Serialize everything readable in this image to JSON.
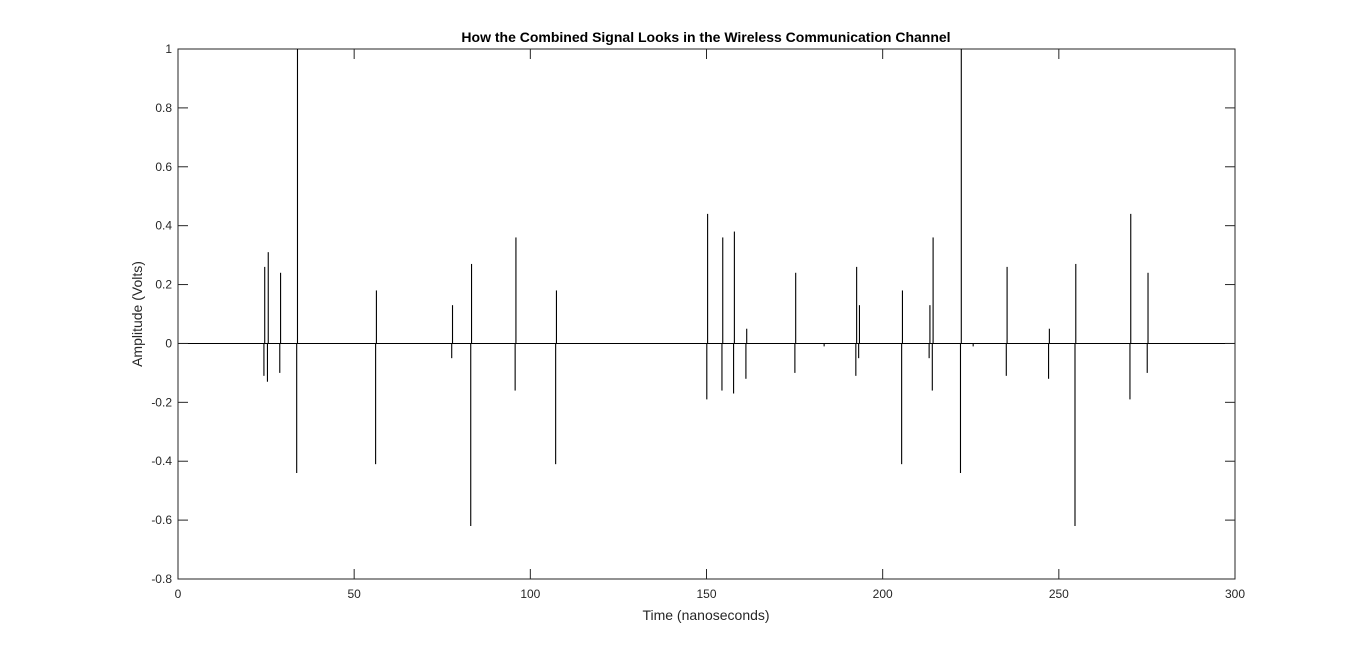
{
  "chart_data": {
    "type": "line",
    "title": "How the Combined Signal Looks in the Wireless Communication Channel",
    "xlabel": "Time (nanoseconds)",
    "ylabel": "Amplitude (Volts)",
    "xlim": [
      0,
      300
    ],
    "ylim": [
      -0.8,
      1
    ],
    "xticks": [
      0,
      50,
      100,
      150,
      200,
      250,
      300
    ],
    "yticks": [
      -0.8,
      -0.6,
      -0.4,
      -0.2,
      0,
      0.2,
      0.4,
      0.6,
      0.8,
      1
    ],
    "xtick_labels": [
      "0",
      "50",
      "100",
      "150",
      "200",
      "250",
      "300"
    ],
    "ytick_labels": [
      "-0.8",
      "-0.6",
      "-0.4",
      "-0.2",
      "0",
      "0.2",
      "0.4",
      "0.6",
      "0.8",
      "1"
    ],
    "grid": false,
    "line_color": "#000000",
    "baseline": 0,
    "pulses": [
      {
        "t": 24.5,
        "peak": 0.26,
        "trough": -0.11
      },
      {
        "t": 25.5,
        "peak": 0.31,
        "trough": -0.13
      },
      {
        "t": 29,
        "peak": 0.24,
        "trough": -0.1
      },
      {
        "t": 33.8,
        "peak": 1.0,
        "trough": -0.44
      },
      {
        "t": 56.2,
        "peak": 0.18,
        "trough": -0.41
      },
      {
        "t": 77.8,
        "peak": 0.13,
        "trough": -0.05
      },
      {
        "t": 83.2,
        "peak": 0.27,
        "trough": -0.62
      },
      {
        "t": 95.8,
        "peak": 0.36,
        "trough": -0.16
      },
      {
        "t": 107.3,
        "peak": 0.18,
        "trough": -0.41
      },
      {
        "t": 150.2,
        "peak": 0.44,
        "trough": -0.19
      },
      {
        "t": 154.5,
        "peak": 0.36,
        "trough": -0.16
      },
      {
        "t": 157.8,
        "peak": 0.38,
        "trough": -0.17
      },
      {
        "t": 161.3,
        "peak": 0.05,
        "trough": -0.12
      },
      {
        "t": 175.2,
        "peak": 0.24,
        "trough": -0.1
      },
      {
        "t": 183.5,
        "peak": 0.0,
        "trough": -0.01
      },
      {
        "t": 192.5,
        "peak": 0.26,
        "trough": -0.11
      },
      {
        "t": 193.3,
        "peak": 0.13,
        "trough": -0.05
      },
      {
        "t": 205.5,
        "peak": 0.18,
        "trough": -0.41
      },
      {
        "t": 213.3,
        "peak": 0.13,
        "trough": -0.05
      },
      {
        "t": 214.2,
        "peak": 0.36,
        "trough": -0.16
      },
      {
        "t": 222.2,
        "peak": 1.0,
        "trough": -0.44
      },
      {
        "t": 225.8,
        "peak": 0.0,
        "trough": -0.01
      },
      {
        "t": 235.2,
        "peak": 0.26,
        "trough": -0.11
      },
      {
        "t": 247.2,
        "peak": 0.05,
        "trough": -0.12
      },
      {
        "t": 254.7,
        "peak": 0.27,
        "trough": -0.62
      },
      {
        "t": 270.3,
        "peak": 0.44,
        "trough": -0.19
      },
      {
        "t": 275.2,
        "peak": 0.24,
        "trough": -0.1
      }
    ]
  }
}
